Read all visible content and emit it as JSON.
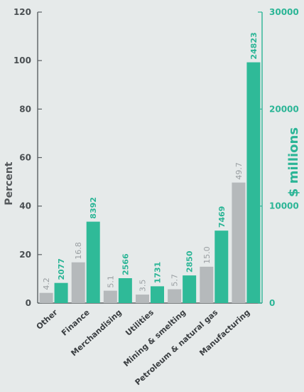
{
  "chart_data": {
    "type": "bar",
    "categories": [
      "Other",
      "Finance",
      "Merchandising",
      "Utilities",
      "Mining & smelting",
      "Petroleum & natural gas",
      "Manufacturing"
    ],
    "series": [
      {
        "values": [
          4.2,
          16.8,
          5.1,
          3.5,
          5.7,
          15.0,
          49.7
        ],
        "labels": [
          "4.2",
          "16.8",
          "5.1",
          "3.5",
          "5.7",
          "15.0",
          "49.7"
        ],
        "color": "#b5b9bb",
        "axis": "left"
      },
      {
        "values": [
          2077,
          8392,
          2566,
          1731,
          2850,
          7469,
          24823
        ],
        "labels": [
          "2077",
          "8392",
          "2566",
          "1731",
          "2850",
          "7469",
          "24823"
        ],
        "color": "#2fba98",
        "axis": "right"
      }
    ],
    "ylabel_left": "Percent",
    "ylabel_right": "$ millions",
    "ylim_left": [
      0,
      120
    ],
    "ylim_right": [
      0,
      30000
    ],
    "yticks_left": [
      "0",
      "20",
      "40",
      "60",
      "80",
      "100",
      "120"
    ],
    "yticks_right": [
      "0",
      "10000",
      "20000",
      "30000"
    ],
    "grid": false
  }
}
